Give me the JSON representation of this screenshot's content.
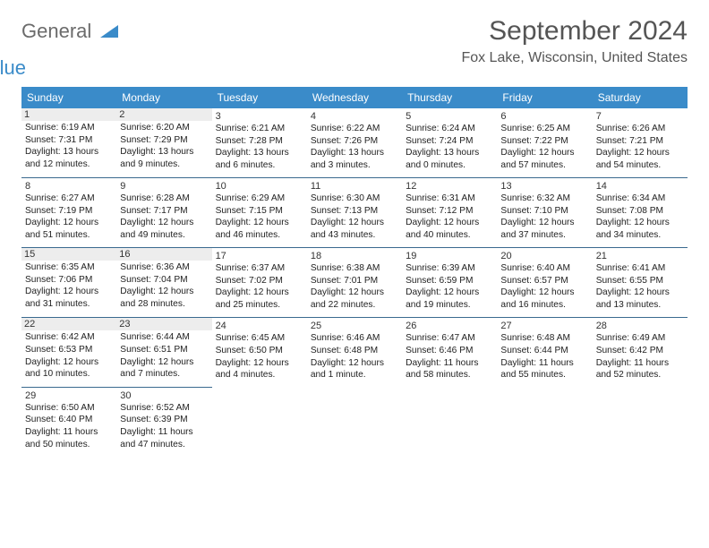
{
  "logo": {
    "word1": "General",
    "word2": "Blue"
  },
  "title": "September 2024",
  "location": "Fox Lake, Wisconsin, United States",
  "colors": {
    "headerBg": "#3a8bc9",
    "headerText": "#ffffff",
    "ruleColor": "#3a6a8f",
    "shadedBg": "#ededed",
    "bodyText": "#222222",
    "titleText": "#555555"
  },
  "dayHeaders": [
    "Sunday",
    "Monday",
    "Tuesday",
    "Wednesday",
    "Thursday",
    "Friday",
    "Saturday"
  ],
  "weeks": [
    [
      {
        "day": "1",
        "shaded": true,
        "sunrise": "6:19 AM",
        "sunset": "7:31 PM",
        "daylight": "13 hours and 12 minutes."
      },
      {
        "day": "2",
        "shaded": true,
        "sunrise": "6:20 AM",
        "sunset": "7:29 PM",
        "daylight": "13 hours and 9 minutes."
      },
      {
        "day": "3",
        "shaded": false,
        "sunrise": "6:21 AM",
        "sunset": "7:28 PM",
        "daylight": "13 hours and 6 minutes."
      },
      {
        "day": "4",
        "shaded": false,
        "sunrise": "6:22 AM",
        "sunset": "7:26 PM",
        "daylight": "13 hours and 3 minutes."
      },
      {
        "day": "5",
        "shaded": false,
        "sunrise": "6:24 AM",
        "sunset": "7:24 PM",
        "daylight": "13 hours and 0 minutes."
      },
      {
        "day": "6",
        "shaded": false,
        "sunrise": "6:25 AM",
        "sunset": "7:22 PM",
        "daylight": "12 hours and 57 minutes."
      },
      {
        "day": "7",
        "shaded": false,
        "sunrise": "6:26 AM",
        "sunset": "7:21 PM",
        "daylight": "12 hours and 54 minutes."
      }
    ],
    [
      {
        "day": "8",
        "shaded": false,
        "sunrise": "6:27 AM",
        "sunset": "7:19 PM",
        "daylight": "12 hours and 51 minutes."
      },
      {
        "day": "9",
        "shaded": false,
        "sunrise": "6:28 AM",
        "sunset": "7:17 PM",
        "daylight": "12 hours and 49 minutes."
      },
      {
        "day": "10",
        "shaded": false,
        "sunrise": "6:29 AM",
        "sunset": "7:15 PM",
        "daylight": "12 hours and 46 minutes."
      },
      {
        "day": "11",
        "shaded": false,
        "sunrise": "6:30 AM",
        "sunset": "7:13 PM",
        "daylight": "12 hours and 43 minutes."
      },
      {
        "day": "12",
        "shaded": false,
        "sunrise": "6:31 AM",
        "sunset": "7:12 PM",
        "daylight": "12 hours and 40 minutes."
      },
      {
        "day": "13",
        "shaded": false,
        "sunrise": "6:32 AM",
        "sunset": "7:10 PM",
        "daylight": "12 hours and 37 minutes."
      },
      {
        "day": "14",
        "shaded": false,
        "sunrise": "6:34 AM",
        "sunset": "7:08 PM",
        "daylight": "12 hours and 34 minutes."
      }
    ],
    [
      {
        "day": "15",
        "shaded": true,
        "sunrise": "6:35 AM",
        "sunset": "7:06 PM",
        "daylight": "12 hours and 31 minutes."
      },
      {
        "day": "16",
        "shaded": true,
        "sunrise": "6:36 AM",
        "sunset": "7:04 PM",
        "daylight": "12 hours and 28 minutes."
      },
      {
        "day": "17",
        "shaded": false,
        "sunrise": "6:37 AM",
        "sunset": "7:02 PM",
        "daylight": "12 hours and 25 minutes."
      },
      {
        "day": "18",
        "shaded": false,
        "sunrise": "6:38 AM",
        "sunset": "7:01 PM",
        "daylight": "12 hours and 22 minutes."
      },
      {
        "day": "19",
        "shaded": false,
        "sunrise": "6:39 AM",
        "sunset": "6:59 PM",
        "daylight": "12 hours and 19 minutes."
      },
      {
        "day": "20",
        "shaded": false,
        "sunrise": "6:40 AM",
        "sunset": "6:57 PM",
        "daylight": "12 hours and 16 minutes."
      },
      {
        "day": "21",
        "shaded": false,
        "sunrise": "6:41 AM",
        "sunset": "6:55 PM",
        "daylight": "12 hours and 13 minutes."
      }
    ],
    [
      {
        "day": "22",
        "shaded": true,
        "sunrise": "6:42 AM",
        "sunset": "6:53 PM",
        "daylight": "12 hours and 10 minutes."
      },
      {
        "day": "23",
        "shaded": true,
        "sunrise": "6:44 AM",
        "sunset": "6:51 PM",
        "daylight": "12 hours and 7 minutes."
      },
      {
        "day": "24",
        "shaded": false,
        "sunrise": "6:45 AM",
        "sunset": "6:50 PM",
        "daylight": "12 hours and 4 minutes."
      },
      {
        "day": "25",
        "shaded": false,
        "sunrise": "6:46 AM",
        "sunset": "6:48 PM",
        "daylight": "12 hours and 1 minute."
      },
      {
        "day": "26",
        "shaded": false,
        "sunrise": "6:47 AM",
        "sunset": "6:46 PM",
        "daylight": "11 hours and 58 minutes."
      },
      {
        "day": "27",
        "shaded": false,
        "sunrise": "6:48 AM",
        "sunset": "6:44 PM",
        "daylight": "11 hours and 55 minutes."
      },
      {
        "day": "28",
        "shaded": false,
        "sunrise": "6:49 AM",
        "sunset": "6:42 PM",
        "daylight": "11 hours and 52 minutes."
      }
    ],
    [
      {
        "day": "29",
        "shaded": false,
        "sunrise": "6:50 AM",
        "sunset": "6:40 PM",
        "daylight": "11 hours and 50 minutes."
      },
      {
        "day": "30",
        "shaded": false,
        "sunrise": "6:52 AM",
        "sunset": "6:39 PM",
        "daylight": "11 hours and 47 minutes."
      },
      null,
      null,
      null,
      null,
      null
    ]
  ],
  "labels": {
    "sunrise": "Sunrise:",
    "sunset": "Sunset:",
    "daylight": "Daylight:"
  }
}
